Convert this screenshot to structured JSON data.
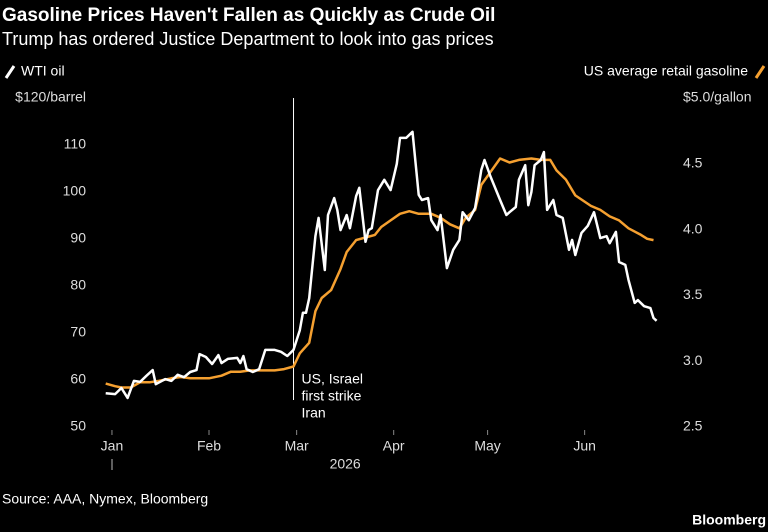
{
  "chart_data": {
    "type": "line",
    "title": "Gasoline Prices Haven't Fallen as Quickly as Crude Oil",
    "subtitle": "Trump has ordered Justice Department to look into gas prices",
    "source": "Source: AAA, Nymex, Bloomberg",
    "brand": "Bloomberg",
    "year_label": "2026",
    "annotation": {
      "x": 58,
      "text": [
        "US, Israel",
        "first strike",
        "Iran"
      ]
    },
    "xlim": [
      -2,
      176
    ],
    "xticks": [
      {
        "value": 0,
        "label": "Jan"
      },
      {
        "value": 31,
        "label": "Feb"
      },
      {
        "value": 59,
        "label": "Mar"
      },
      {
        "value": 90,
        "label": "Apr"
      },
      {
        "value": 120,
        "label": "May"
      },
      {
        "value": 151,
        "label": "Jun"
      }
    ],
    "ylim": [
      50,
      120
    ],
    "yticks": [
      50,
      60,
      70,
      80,
      90,
      100,
      110,
      {
        "value": 120,
        "label": "$120/barrel"
      }
    ],
    "y2lim": [
      2.5,
      5.0
    ],
    "y2ticks": [
      2.5,
      {
        "value": 3,
        "label": "3.0"
      },
      3.5,
      {
        "value": 4,
        "label": "4.0"
      },
      4.5,
      {
        "value": 5,
        "label": "$5.0/gallon"
      }
    ],
    "series": [
      {
        "name": "WTI oil",
        "color": "#ffffff",
        "axis": "y",
        "x": [
          -2,
          1,
          3,
          5,
          7,
          9,
          11,
          13,
          14,
          17,
          19,
          21,
          23,
          25,
          27,
          28,
          30,
          32,
          34,
          35,
          37,
          40,
          41,
          42,
          43,
          45,
          47,
          49,
          52,
          54,
          56,
          58,
          60,
          61,
          62,
          63,
          65,
          66,
          68,
          69,
          71,
          72,
          73,
          75,
          76,
          78,
          79,
          81,
          82,
          83,
          85,
          87,
          89,
          91,
          92,
          94,
          96,
          98,
          99,
          101,
          102,
          104,
          105,
          107,
          109,
          111,
          112,
          114,
          116,
          118,
          119,
          121,
          124,
          126,
          127,
          129,
          130,
          132,
          133,
          134,
          135,
          137,
          138,
          139,
          141,
          142,
          144,
          146,
          147,
          148,
          150,
          152,
          154,
          156,
          158,
          159,
          161,
          162,
          164,
          165,
          167,
          168,
          170,
          172,
          173,
          174
        ],
        "values": [
          57.2,
          57.0,
          58.3,
          56.2,
          59.8,
          59.6,
          60.9,
          62.1,
          59.1,
          60.2,
          59.8,
          61.1,
          60.6,
          61.7,
          62.1,
          65.5,
          64.9,
          63.4,
          65.3,
          63.6,
          64.5,
          64.7,
          63.6,
          65.1,
          62.3,
          61.7,
          62.3,
          66.4,
          66.4,
          66.0,
          65.1,
          66.4,
          70.6,
          74.3,
          74.3,
          77.4,
          90.6,
          94.5,
          83.4,
          95.1,
          98.7,
          96.2,
          91.9,
          95.1,
          92.3,
          99.1,
          100.9,
          89.4,
          91.9,
          92.3,
          100.4,
          102.6,
          100.4,
          106.0,
          111.5,
          111.5,
          112.8,
          99.4,
          98.3,
          98.7,
          94.0,
          91.9,
          95.1,
          83.8,
          87.7,
          89.8,
          95.7,
          94.0,
          96.6,
          104.7,
          106.8,
          103.2,
          98.3,
          95.1,
          95.7,
          96.8,
          102.6,
          105.7,
          97.2,
          100.0,
          105.7,
          106.8,
          108.5,
          96.2,
          98.3,
          95.1,
          94.5,
          87.7,
          89.8,
          86.6,
          91.3,
          92.8,
          95.7,
          90.2,
          90.6,
          89.1,
          91.5,
          85.1,
          84.5,
          81.3,
          76.4,
          77.0,
          75.7,
          75.3,
          73.2,
          72.6
        ]
      },
      {
        "name": "US average retail gasoline",
        "color": "#f5a030",
        "axis": "y2",
        "x": [
          -2,
          1,
          3,
          6,
          9,
          12,
          15,
          19,
          22,
          25,
          28,
          31,
          35,
          38,
          41,
          44,
          47,
          49,
          52,
          55,
          58,
          60,
          63,
          65,
          67,
          70,
          73,
          75,
          78,
          81,
          84,
          86,
          89,
          92,
          95,
          98,
          102,
          105,
          108,
          111,
          113,
          116,
          118,
          121,
          124,
          127,
          130,
          134,
          137,
          140,
          142,
          145,
          148,
          153,
          156,
          159,
          162,
          165,
          169,
          171,
          173
        ],
        "values": [
          2.83,
          2.81,
          2.8,
          2.8,
          2.84,
          2.84,
          2.85,
          2.87,
          2.88,
          2.87,
          2.87,
          2.87,
          2.89,
          2.92,
          2.92,
          2.93,
          2.93,
          2.93,
          2.93,
          2.94,
          2.96,
          3.06,
          3.14,
          3.38,
          3.48,
          3.54,
          3.7,
          3.83,
          3.92,
          3.94,
          3.96,
          4.02,
          4.07,
          4.12,
          4.14,
          4.12,
          4.12,
          4.09,
          4.04,
          4.01,
          4.09,
          4.15,
          4.34,
          4.44,
          4.54,
          4.51,
          4.53,
          4.54,
          4.53,
          4.53,
          4.45,
          4.38,
          4.26,
          4.18,
          4.15,
          4.1,
          4.07,
          4.01,
          3.96,
          3.93,
          3.92
        ]
      }
    ]
  }
}
